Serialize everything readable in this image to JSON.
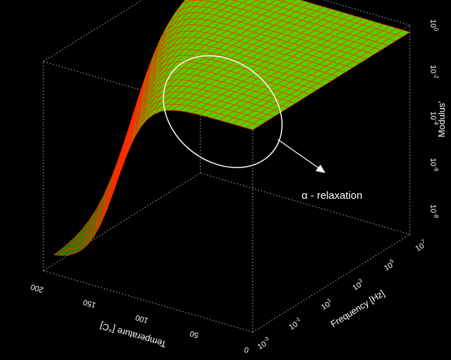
{
  "chart_data": {
    "type": "surface",
    "title": "",
    "x_axis": {
      "label": "Temperature [°C]",
      "ticks": [
        {
          "value": 0,
          "label": "0"
        },
        {
          "value": 50,
          "label": "50"
        },
        {
          "value": 100,
          "label": "100"
        },
        {
          "value": 150,
          "label": "150"
        },
        {
          "value": 200,
          "label": "200"
        }
      ],
      "range": [
        0,
        200
      ]
    },
    "y_axis": {
      "label": "Frequency [Hz]",
      "scale": "log",
      "ticks": [
        {
          "value": 0.001,
          "base": "10",
          "exp": "-3"
        },
        {
          "value": 0.1,
          "base": "10",
          "exp": "-1"
        },
        {
          "value": 10,
          "base": "10",
          "exp": "1"
        },
        {
          "value": 1000,
          "base": "10",
          "exp": "3"
        },
        {
          "value": 100000,
          "base": "10",
          "exp": "5"
        },
        {
          "value": 10000000,
          "base": "10",
          "exp": "7"
        }
      ],
      "range": [
        0.001,
        10000000
      ]
    },
    "z_axis": {
      "label": "Modulus'",
      "scale": "log",
      "ticks": [
        {
          "value": 1e-08,
          "base": "10",
          "exp": "-8"
        },
        {
          "value": 1e-06,
          "base": "10",
          "exp": "-6"
        },
        {
          "value": 0.0001,
          "base": "10",
          "exp": "-4"
        },
        {
          "value": 0.01,
          "base": "10",
          "exp": "-2"
        },
        {
          "value": 1,
          "base": "10",
          "exp": "0"
        }
      ],
      "range": [
        1e-09,
        1
      ]
    },
    "surface": {
      "colors": {
        "fill_low": "#1f6f00",
        "fill_high": "#5cd000",
        "mesh": "#ff2a00"
      }
    },
    "annotation": {
      "text": "α - relaxation",
      "marker": "ellipse with arrow",
      "color": "#ffffff"
    },
    "grid": "dotted box"
  }
}
